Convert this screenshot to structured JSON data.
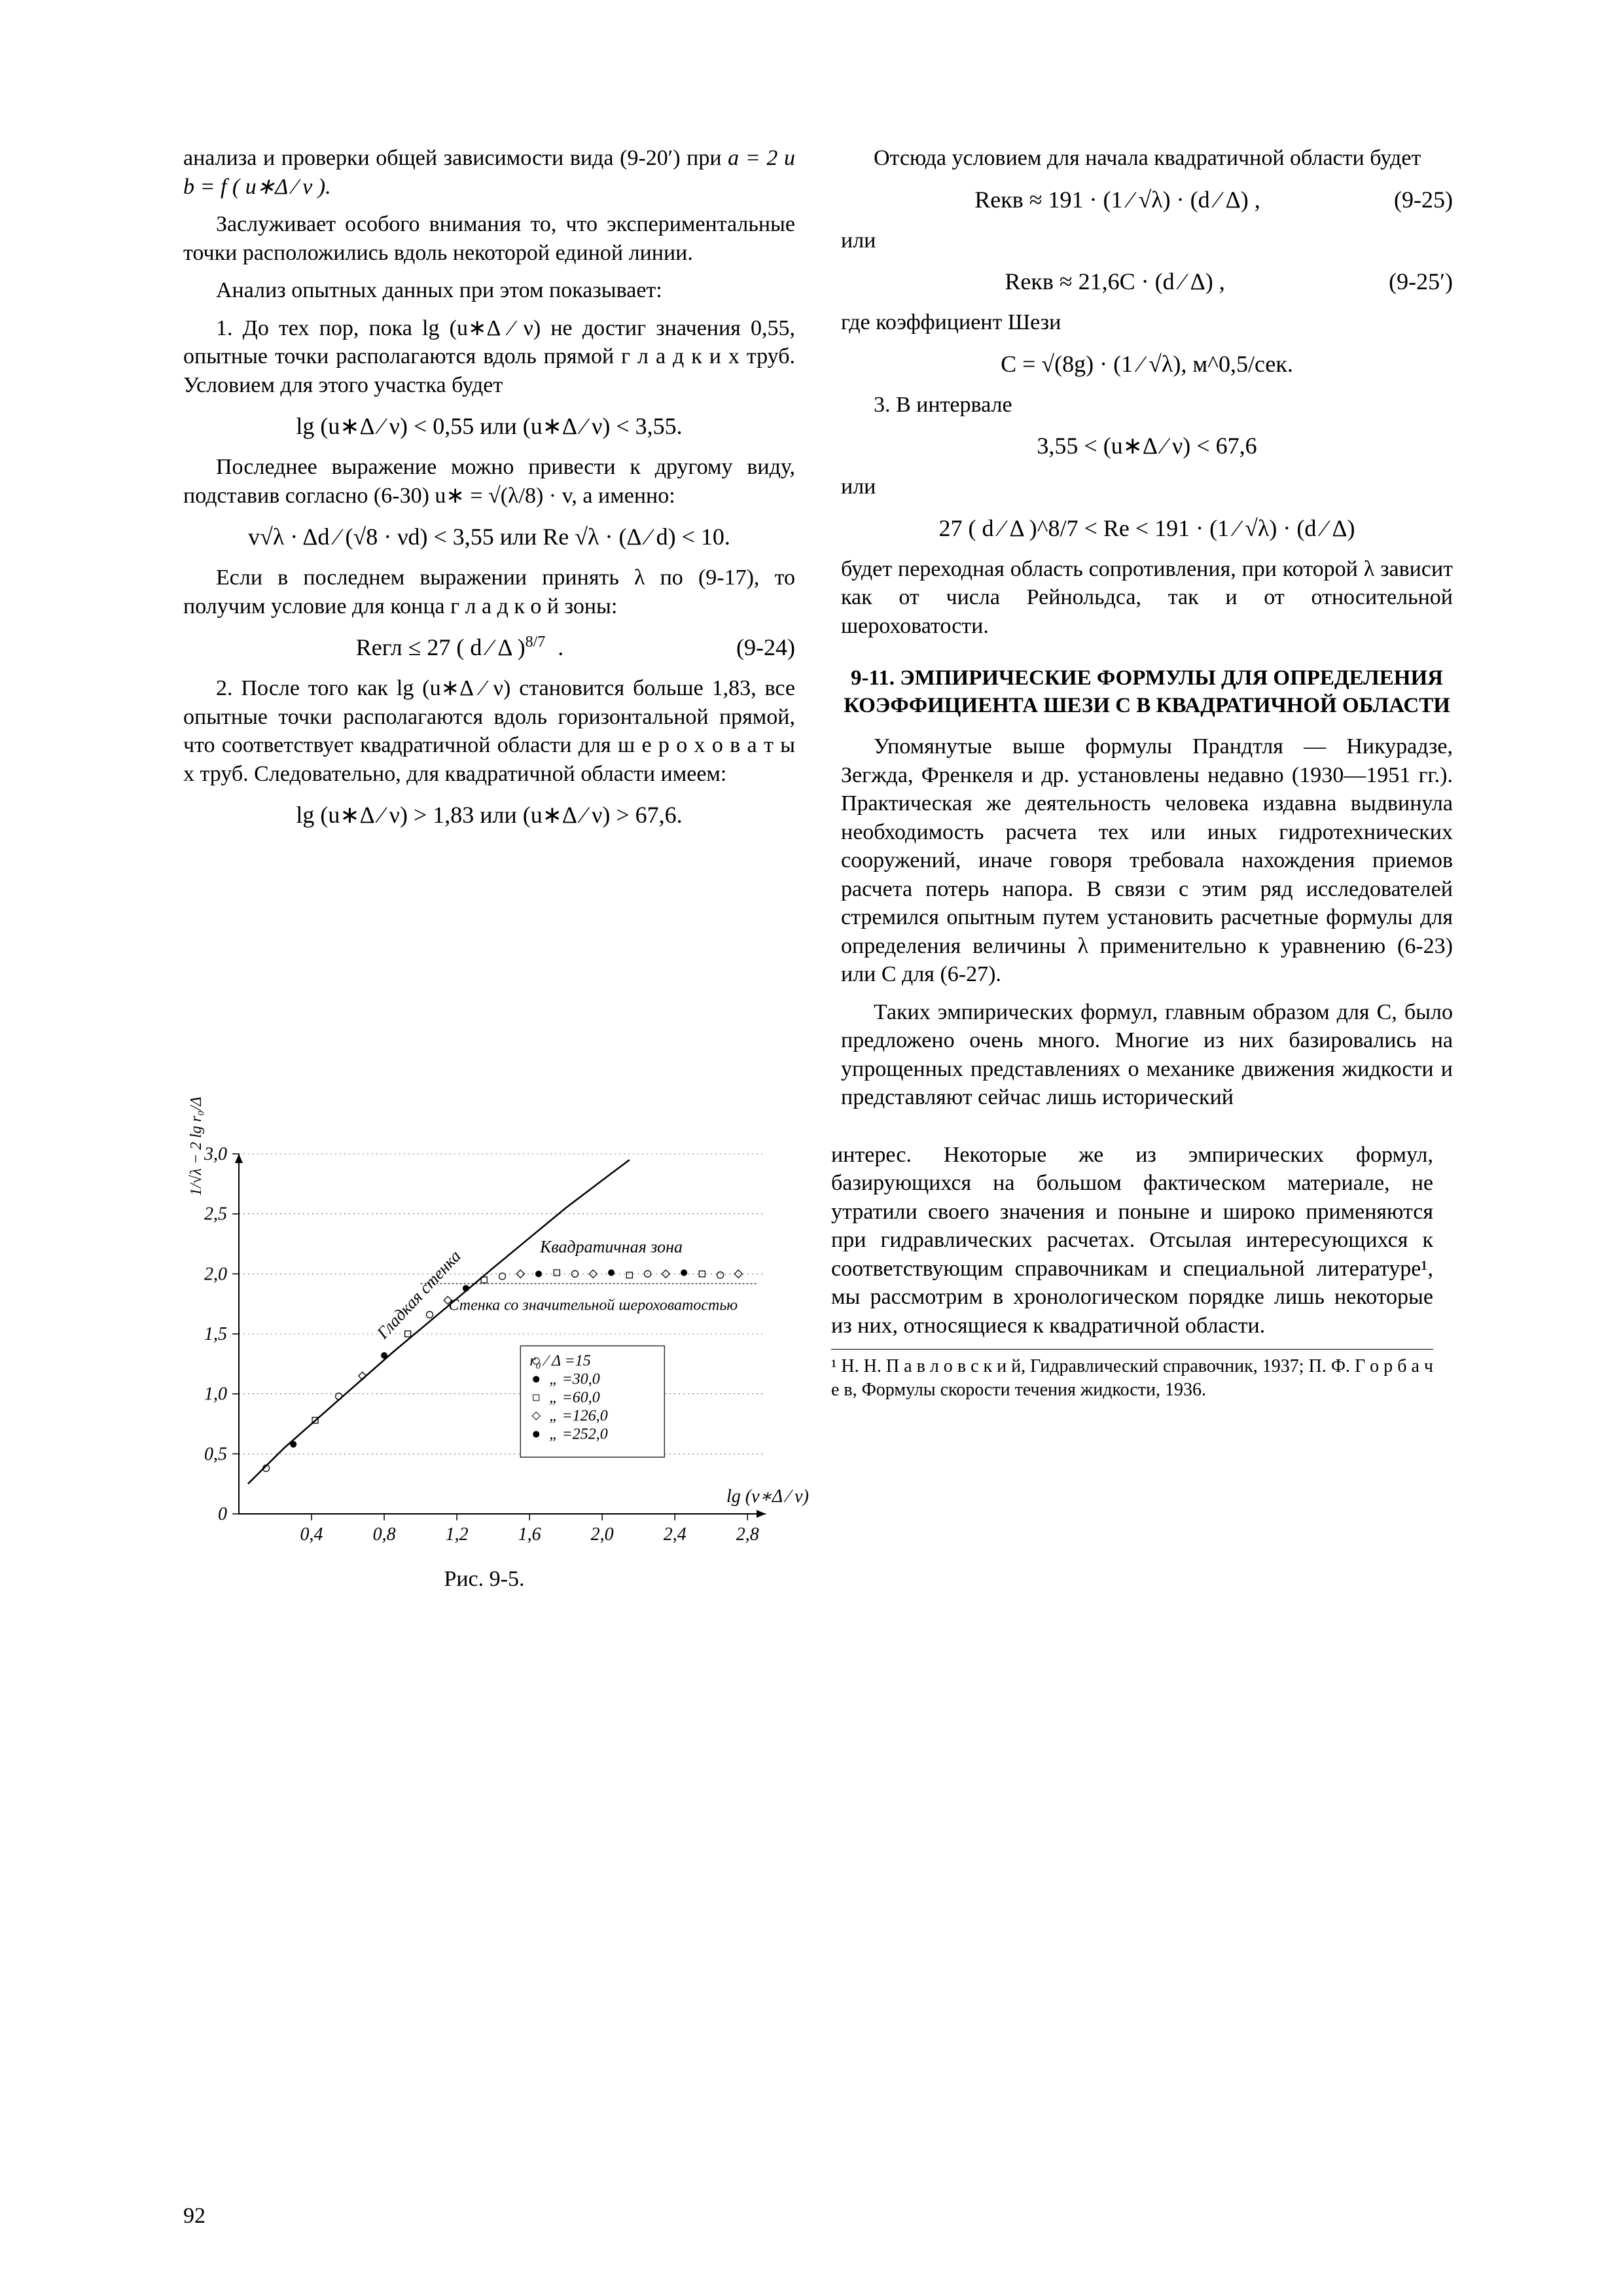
{
  "page_number": "92",
  "left": {
    "p1a": "анализа и проверки общей зависимости вида (9-20′) при ",
    "p1b_math": "a = 2 и b = f ( u∗Δ ⁄ ν ).",
    "p2": "Заслуживает особого внимания то, что экспериментальные точки расположились вдоль некоторой единой линии.",
    "p3": "Анализ опытных данных при этом показывает:",
    "p4": "1. До тех пор, пока lg (u∗Δ ⁄ ν) не достиг значения 0,55, опытные точки располагаются вдоль прямой г л а д к и х труб. Условием для этого участка будет",
    "f1": "lg (u∗Δ ⁄ ν) < 0,55  или  (u∗Δ ⁄ ν) < 3,55.",
    "p5a": "Последнее выражение можно привести к другому виду, подставив согласно (6-30) ",
    "p5b": "u∗ = √(λ/8) · v,  а именно:",
    "f2": "v√λ · Δd ⁄ (√8 · νd) < 3,55  или  Re √λ · (Δ ⁄ d) < 10.",
    "p6": "Если в последнем выражении принять λ по (9-17), то получим условие для конца г л а д к о й зоны:",
    "f3_lhs": "Reгл ≤ 27 ( d ⁄ Δ )",
    "f3_exp": "8/7",
    "f3_eq": "(9-24)",
    "p7": "2. После того как lg (u∗Δ ⁄ ν) становится больше 1,83, все опытные точки располагаются вдоль горизонтальной прямой, что соответствует квадратичной области для ш е р о х о в а т ы х труб. Следовательно, для квадратичной области имеем:",
    "f4": "lg (u∗Δ ⁄ ν) > 1,83  или  (u∗Δ ⁄ ν) > 67,6."
  },
  "right": {
    "p1": "Отсюда условием для начала квадратичной области будет",
    "f5_lhs": "Reкв ≈ 191 · (1 ⁄ √λ) · (d ⁄ Δ) ,",
    "f5_eq": "(9-25)",
    "or1": "или",
    "f6_lhs": "Reкв ≈ 21,6C · (d ⁄ Δ) ,",
    "f6_eq": "(9-25′)",
    "p2": "где коэффициент Шези",
    "f7": "C = √(8g) · (1 ⁄ √λ),   м^0,5/сек.",
    "p3": "3. В интервале",
    "f8": "3,55 < (u∗Δ ⁄ ν) < 67,6",
    "or2": "или",
    "f9": "27 ( d ⁄ Δ )^8/7 < Re < 191 · (1 ⁄ √λ) · (d ⁄ Δ)",
    "p4": "будет переходная область сопротивления, при которой λ зависит как от числа Рейнольдса, так и от относительной шероховатости.",
    "section": "9-11. ЭМПИРИЧЕСКИЕ ФОРМУЛЫ ДЛЯ ОПРЕДЕЛЕНИЯ КОЭФФИЦИЕНТА ШЕЗИ С В КВАДРАТИЧНОЙ ОБЛАСТИ",
    "p5": "Упомянутые выше формулы Прандтля — Никурадзе, Зегжда, Френкеля и др. установлены недавно (1930—1951 гг.). Практическая же деятельность человека издавна выдвинула необходимость расчета тех или иных гидротехнических сооружений, иначе говоря требовала нахождения приемов расчета потерь напора. В связи с этим ряд исследователей стремился опытным путем установить расчетные формулы для определения величины λ применительно к уравнению (6-23) или C для (6-27).",
    "p6": "Таких эмпирических формул, главным образом для C, было предложено очень много. Многие из них базировались на упрощенных представлениях о механике движения жидкости и представляют сейчас лишь исторический",
    "p7": "интерес. Некоторые же из эмпирических формул, базирующихся на большом фактическом материале, не утратили своего значения и поныне и широко применяются при гидравлических расчетах. Отсылая интересующихся к соответствующим справочникам и специальной литературе¹, мы рассмотрим в хронологическом порядке лишь некоторые из них, относящиеся к квадратичной области.",
    "footnote": "¹ Н. Н. П а в л о в с к и й, Гидравлический справочник, 1937;  П. Ф. Г о р б а ч е в, Формулы скорости течения жидкости, 1936."
  },
  "figure": {
    "caption": "Рис. 9-5.",
    "chart": {
      "type": "scatter-line",
      "background_color": "#ffffff",
      "axis_color": "#000000",
      "xlim": [
        0,
        2.9
      ],
      "ylim": [
        0,
        3.0
      ],
      "xticks": [
        0.4,
        0.8,
        1.2,
        1.6,
        2.0,
        2.4,
        2.8
      ],
      "xtick_labels": [
        "0,4",
        "0,8",
        "1,2",
        "1,6",
        "2,0",
        "2,4",
        "2,8"
      ],
      "yticks": [
        0,
        0.5,
        1.0,
        1.5,
        2.0,
        2.5,
        3.0
      ],
      "ytick_labels": [
        "0",
        "0,5",
        "1,0",
        "1,5",
        "2,0",
        "2,5",
        "3,0"
      ],
      "xlabel": "lg (v∗Δ ⁄ ν)",
      "ylabel": "1/√λ − 2 lg r₀/Δ",
      "title_fontsize": 28,
      "label_fontsize": 28,
      "tick_fontsize": 28,
      "series_line": {
        "name": "Гладкая стенка",
        "points": [
          [
            0.05,
            0.25
          ],
          [
            0.25,
            0.55
          ],
          [
            0.55,
            0.95
          ],
          [
            0.85,
            1.35
          ],
          [
            1.15,
            1.73
          ],
          [
            1.4,
            2.05
          ],
          [
            1.6,
            2.3
          ],
          [
            1.8,
            2.55
          ],
          [
            2.0,
            2.78
          ],
          [
            2.15,
            2.95
          ]
        ],
        "line_width": 2.5,
        "color": "#000000"
      },
      "zone_label_1": "Квадратичная зона",
      "zone_label_2": "Стенка со значительной шероховатостью",
      "plateau_y": 2.0,
      "plateau_x_start": 1.0,
      "plateau_x_end": 2.85,
      "legend": {
        "title": "r₀ ⁄ Δ =",
        "items": [
          {
            "marker": "circle_open",
            "label": "15"
          },
          {
            "marker": "circle_dot",
            "label": "30,0"
          },
          {
            "marker": "square",
            "label": "60,0"
          },
          {
            "marker": "diamond",
            "label": "126,0"
          },
          {
            "marker": "circle_fill",
            "label": "252,0"
          }
        ]
      },
      "scatter": [
        {
          "x": 0.15,
          "y": 0.38,
          "m": "c"
        },
        {
          "x": 0.3,
          "y": 0.58,
          "m": "d"
        },
        {
          "x": 0.42,
          "y": 0.78,
          "m": "s"
        },
        {
          "x": 0.55,
          "y": 0.98,
          "m": "c"
        },
        {
          "x": 0.68,
          "y": 1.15,
          "m": "r"
        },
        {
          "x": 0.8,
          "y": 1.32,
          "m": "d"
        },
        {
          "x": 0.93,
          "y": 1.5,
          "m": "s"
        },
        {
          "x": 1.05,
          "y": 1.66,
          "m": "c"
        },
        {
          "x": 1.15,
          "y": 1.78,
          "m": "r"
        },
        {
          "x": 1.25,
          "y": 1.88,
          "m": "d"
        },
        {
          "x": 1.35,
          "y": 1.95,
          "m": "s"
        },
        {
          "x": 1.45,
          "y": 1.98,
          "m": "c"
        },
        {
          "x": 1.55,
          "y": 2.0,
          "m": "r"
        },
        {
          "x": 1.65,
          "y": 2.0,
          "m": "d"
        },
        {
          "x": 1.75,
          "y": 2.01,
          "m": "s"
        },
        {
          "x": 1.85,
          "y": 2.0,
          "m": "c"
        },
        {
          "x": 1.95,
          "y": 2.0,
          "m": "r"
        },
        {
          "x": 2.05,
          "y": 2.01,
          "m": "d"
        },
        {
          "x": 2.15,
          "y": 1.99,
          "m": "s"
        },
        {
          "x": 2.25,
          "y": 2.0,
          "m": "c"
        },
        {
          "x": 2.35,
          "y": 2.0,
          "m": "r"
        },
        {
          "x": 2.45,
          "y": 2.01,
          "m": "d"
        },
        {
          "x": 2.55,
          "y": 2.0,
          "m": "s"
        },
        {
          "x": 2.65,
          "y": 1.99,
          "m": "c"
        },
        {
          "x": 2.75,
          "y": 2.0,
          "m": "r"
        }
      ]
    }
  }
}
